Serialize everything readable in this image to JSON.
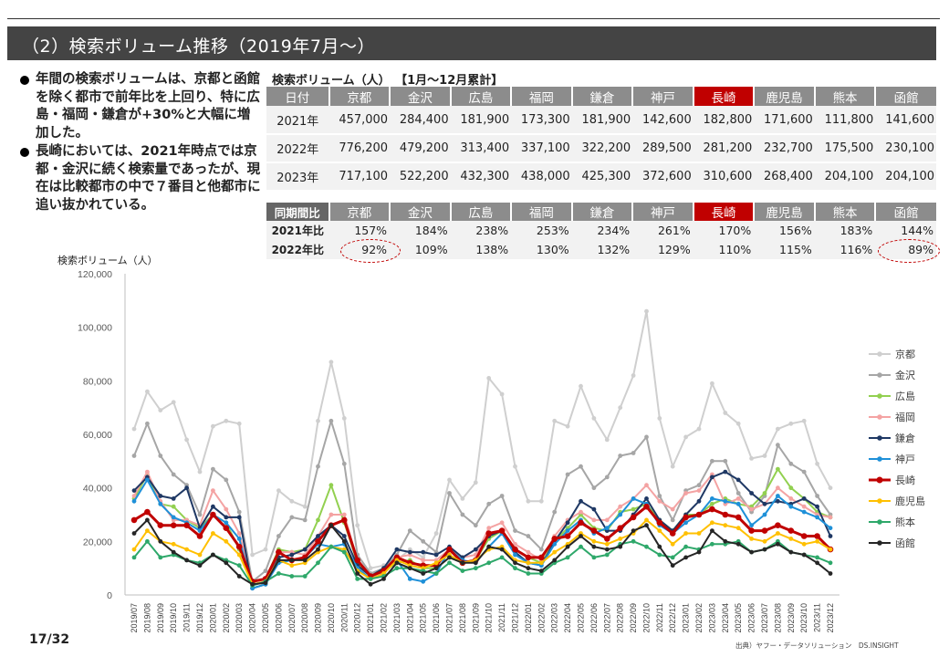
{
  "header": {
    "title": "（2）検索ボリューム推移（2019年7月～）"
  },
  "bullets": [
    "年間の検索ボリュームは、京都と函館を除く都市で前年比を上回り、特に広島・福岡・鎌倉が+30%と大幅に増加した。",
    "長崎においては、2021年時点では京都・金沢に続く検索量であったが、現在は比較都市の中で７番目と他都市に追い抜かれている。"
  ],
  "volume_table": {
    "title": "検索ボリューム（人）",
    "note": "【1月～12月累計】",
    "headers": [
      "日付",
      "京都",
      "金沢",
      "広島",
      "福岡",
      "鎌倉",
      "神戸",
      "長崎",
      "鹿児島",
      "熊本",
      "函館"
    ],
    "rows": [
      [
        "2021年",
        "457,000",
        "284,400",
        "181,900",
        "173,300",
        "181,900",
        "142,600",
        "182,800",
        "171,600",
        "111,800",
        "141,600"
      ],
      [
        "2022年",
        "776,200",
        "479,200",
        "313,400",
        "337,100",
        "322,200",
        "289,500",
        "281,200",
        "232,700",
        "175,500",
        "230,100"
      ],
      [
        "2023年",
        "717,100",
        "522,200",
        "432,300",
        "438,000",
        "425,300",
        "372,600",
        "310,600",
        "268,400",
        "204,100",
        "204,100"
      ]
    ]
  },
  "yoy_table": {
    "headers": [
      "同期間比",
      "京都",
      "金沢",
      "広島",
      "福岡",
      "鎌倉",
      "神戸",
      "長崎",
      "鹿児島",
      "熊本",
      "函館"
    ],
    "rows": [
      [
        "2021年比",
        "157%",
        "184%",
        "238%",
        "253%",
        "234%",
        "261%",
        "170%",
        "156%",
        "183%",
        "144%"
      ],
      [
        "2022年比",
        "92%",
        "109%",
        "138%",
        "130%",
        "132%",
        "129%",
        "110%",
        "115%",
        "116%",
        "89%"
      ]
    ]
  },
  "highlight_color": "#c00000",
  "chart_data": {
    "type": "line",
    "ylabel": "検索ボリューム（人）",
    "ylim": [
      0,
      120000
    ],
    "yticks": [
      "0",
      "20,000",
      "40,000",
      "60,000",
      "80,000",
      "100,000",
      "120,000"
    ],
    "grid": false,
    "legend": "right",
    "x": [
      "2019/07",
      "2019/08",
      "2019/09",
      "2019/10",
      "2019/11",
      "2019/12",
      "2020/01",
      "2020/02",
      "2020/03",
      "2020/04",
      "2020/05",
      "2020/06",
      "2020/07",
      "2020/08",
      "2020/09",
      "2020/10",
      "2020/11",
      "2020/12",
      "2021/01",
      "2021/02",
      "2021/03",
      "2021/04",
      "2021/05",
      "2021/06",
      "2021/07",
      "2021/08",
      "2021/09",
      "2021/10",
      "2021/11",
      "2021/12",
      "2022/01",
      "2022/02",
      "2022/03",
      "2022/04",
      "2022/05",
      "2022/06",
      "2022/07",
      "2022/08",
      "2022/09",
      "2022/10",
      "2022/11",
      "2022/12",
      "2023/01",
      "2023/02",
      "2023/03",
      "2023/04",
      "2023/05",
      "2023/06",
      "2023/07",
      "2023/08",
      "2023/09",
      "2023/10",
      "2023/11",
      "2023/12"
    ],
    "series": [
      {
        "name": "京都",
        "color": "#cfcfcf",
        "width": 2,
        "values": [
          62000,
          76000,
          69000,
          72000,
          58000,
          46000,
          63000,
          65000,
          64000,
          15000,
          17000,
          39000,
          35000,
          33000,
          65000,
          87000,
          66000,
          26000,
          10000,
          11000,
          13000,
          17000,
          14000,
          23000,
          43000,
          36000,
          42000,
          81000,
          75000,
          48000,
          35000,
          35000,
          65000,
          63000,
          78000,
          66000,
          58000,
          70000,
          82000,
          106000,
          66000,
          48000,
          59000,
          62000,
          79000,
          68000,
          64000,
          51000,
          52000,
          62000,
          64000,
          65000,
          49000,
          40000
        ]
      },
      {
        "name": "金沢",
        "color": "#a6a6a6",
        "width": 2,
        "values": [
          52000,
          64000,
          52000,
          45000,
          41000,
          30000,
          47000,
          43000,
          31000,
          5000,
          9000,
          22000,
          29000,
          28000,
          48000,
          65000,
          49000,
          15000,
          8000,
          10000,
          15000,
          24000,
          20000,
          16000,
          38000,
          30000,
          26000,
          34000,
          37000,
          24000,
          22000,
          17000,
          31000,
          45000,
          48000,
          40000,
          44000,
          52000,
          53000,
          59000,
          37000,
          28000,
          39000,
          41000,
          50000,
          50000,
          38000,
          31000,
          37000,
          56000,
          49000,
          46000,
          37000,
          30000
        ]
      },
      {
        "name": "広島",
        "color": "#92d050",
        "width": 2,
        "values": [
          36000,
          45000,
          34000,
          33000,
          28000,
          25000,
          30000,
          27000,
          17000,
          5000,
          6000,
          17000,
          16000,
          17000,
          28000,
          41000,
          27000,
          12000,
          7000,
          9000,
          12000,
          13000,
          10000,
          10000,
          14000,
          12000,
          13000,
          21000,
          24000,
          17000,
          14000,
          12000,
          20000,
          25000,
          30000,
          25000,
          24000,
          31000,
          32000,
          34000,
          28000,
          24000,
          30000,
          30000,
          34000,
          36000,
          34000,
          33000,
          38000,
          47000,
          40000,
          36000,
          31000,
          29000
        ]
      },
      {
        "name": "福岡",
        "color": "#f4a3a3",
        "width": 2,
        "values": [
          37000,
          46000,
          35000,
          28000,
          28000,
          26000,
          39000,
          32000,
          23000,
          4000,
          5000,
          16000,
          16000,
          15000,
          22000,
          30000,
          30000,
          13000,
          7000,
          9000,
          14000,
          15000,
          13000,
          13000,
          17000,
          14000,
          15000,
          25000,
          27000,
          19000,
          16000,
          13000,
          22000,
          28000,
          31000,
          28000,
          28000,
          33000,
          36000,
          41000,
          35000,
          32000,
          38000,
          39000,
          45000,
          34000,
          36000,
          32000,
          34000,
          40000,
          36000,
          33000,
          30000,
          29000
        ]
      },
      {
        "name": "鎌倉",
        "color": "#1f3864",
        "width": 2,
        "values": [
          39000,
          44000,
          37000,
          36000,
          40000,
          25000,
          33000,
          29000,
          29000,
          2500,
          4000,
          14000,
          15000,
          17000,
          22000,
          26000,
          22000,
          11000,
          7000,
          10000,
          17000,
          16000,
          16000,
          15000,
          18000,
          14000,
          17000,
          22000,
          24000,
          16000,
          12000,
          11000,
          20000,
          27000,
          35000,
          32000,
          24000,
          24000,
          30000,
          36000,
          28000,
          24000,
          30000,
          35000,
          44000,
          46000,
          43000,
          38000,
          34000,
          35000,
          34000,
          36000,
          33000,
          22000
        ]
      },
      {
        "name": "神戸",
        "color": "#1e90d8",
        "width": 2,
        "values": [
          35000,
          43000,
          34000,
          29000,
          27000,
          24000,
          30000,
          27000,
          21000,
          2500,
          4000,
          12000,
          13000,
          14000,
          19000,
          18000,
          19000,
          10000,
          6000,
          8000,
          13000,
          6000,
          5000,
          8000,
          17000,
          13000,
          12000,
          18000,
          23000,
          15000,
          12000,
          11000,
          19000,
          24000,
          28000,
          23000,
          25000,
          30000,
          36000,
          34000,
          26000,
          23000,
          27000,
          30000,
          36000,
          35000,
          34000,
          26000,
          30000,
          37000,
          33000,
          31000,
          29000,
          25000
        ]
      },
      {
        "name": "長崎",
        "color": "#c00000",
        "width": 3,
        "values": [
          28000,
          31000,
          26000,
          26000,
          26000,
          22000,
          30000,
          25000,
          18000,
          5000,
          6000,
          16000,
          13000,
          14000,
          20000,
          26000,
          28000,
          13000,
          7000,
          9000,
          14000,
          12000,
          11000,
          11000,
          17000,
          12000,
          13000,
          23000,
          24000,
          17000,
          14000,
          14000,
          21000,
          22000,
          27000,
          24000,
          21000,
          25000,
          29000,
          33000,
          27000,
          23000,
          29000,
          30000,
          32000,
          30000,
          29000,
          24000,
          24000,
          26000,
          24000,
          22000,
          22000,
          17000
        ]
      },
      {
        "name": "鹿児島",
        "color": "#ffc000",
        "width": 2,
        "values": [
          17000,
          24000,
          20000,
          19000,
          17000,
          15000,
          23000,
          20000,
          15000,
          4000,
          5000,
          13000,
          11000,
          12000,
          16000,
          18000,
          17000,
          9000,
          6000,
          8000,
          13000,
          11000,
          10000,
          12000,
          15000,
          12000,
          13000,
          17000,
          18000,
          13000,
          12000,
          12000,
          16000,
          19000,
          23000,
          20000,
          19000,
          21000,
          23000,
          28000,
          24000,
          19000,
          23000,
          23000,
          27000,
          26000,
          25000,
          21000,
          20000,
          23000,
          21000,
          19000,
          20000,
          17000
        ]
      },
      {
        "name": "熊本",
        "color": "#2ea86a",
        "width": 2,
        "values": [
          14000,
          20000,
          14000,
          15000,
          13000,
          12000,
          15000,
          13000,
          11000,
          3500,
          5000,
          8000,
          7000,
          7000,
          12000,
          18000,
          16000,
          6000,
          6000,
          7000,
          10000,
          10000,
          9000,
          8000,
          12000,
          9000,
          10000,
          12000,
          14000,
          10000,
          8000,
          8000,
          12000,
          14000,
          18000,
          14000,
          15000,
          19000,
          20000,
          18000,
          15000,
          14000,
          18000,
          17000,
          19000,
          19000,
          20000,
          16000,
          17000,
          20000,
          16000,
          15000,
          14000,
          12000
        ]
      },
      {
        "name": "函館",
        "color": "#262626",
        "width": 2,
        "values": [
          23000,
          28000,
          20000,
          16000,
          13000,
          11000,
          15000,
          12000,
          7000,
          4000,
          4500,
          13000,
          13000,
          13000,
          17000,
          26000,
          20000,
          8000,
          4000,
          6000,
          12000,
          10000,
          8000,
          10000,
          14000,
          12000,
          12000,
          18000,
          17000,
          12000,
          10000,
          9000,
          13000,
          18000,
          22000,
          18000,
          17000,
          18000,
          24000,
          26000,
          18000,
          11000,
          14000,
          16000,
          24000,
          20000,
          19000,
          16000,
          17000,
          19000,
          16000,
          15000,
          12000,
          8000
        ]
      }
    ]
  },
  "footer": {
    "page": "17/32",
    "source": "出典）ヤフー・データソリューション　DS.INSIGHT"
  }
}
